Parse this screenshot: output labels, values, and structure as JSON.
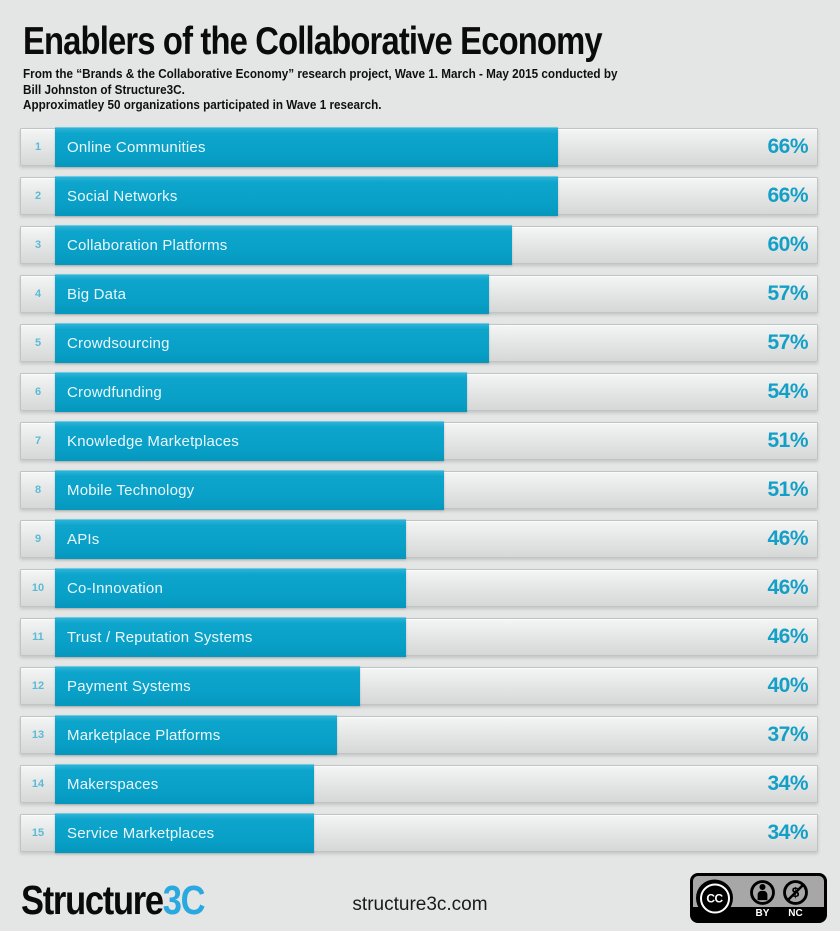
{
  "header": {
    "title": "Enablers of the Collaborative Economy",
    "subtitle_line1": "From the “Brands & the Collaborative Economy” research project, Wave 1. March - May 2015 conducted by",
    "subtitle_line2": "Bill Johnston of Structure3C.",
    "subtitle_line3": "Approximatley 50 organizations participated in Wave 1 research."
  },
  "chart_data": {
    "type": "bar",
    "orientation": "horizontal",
    "title": "Enablers of the Collaborative Economy",
    "categories": [
      "Online Communities",
      "Social Networks",
      "Collaboration Platforms",
      "Big Data",
      "Crowdsourcing",
      "Crowdfunding",
      "Knowledge Marketplaces",
      "Mobile Technology",
      "APIs",
      "Co-Innovation",
      "Trust / Reputation Systems",
      "Payment Systems",
      "Marketplace Platforms",
      "Makerspaces",
      "Service Marketplaces"
    ],
    "values": [
      66,
      66,
      60,
      57,
      57,
      54,
      51,
      51,
      46,
      46,
      46,
      40,
      37,
      34,
      34
    ],
    "ranks": [
      1,
      2,
      3,
      4,
      5,
      6,
      7,
      8,
      9,
      10,
      11,
      12,
      13,
      14,
      15
    ],
    "value_suffix": "%",
    "xlim": [
      0,
      100
    ],
    "grid": false,
    "legend": false,
    "bar_color": "#09a0c7",
    "value_label_color": "#149fc7",
    "bar_label_color": "#eaf7fb",
    "rank_color": "#5bbbd5"
  },
  "footer": {
    "logo_part1": "Structure",
    "logo_part2": "3C",
    "logo_accent_color": "#2aa9e0",
    "website": "structure3c.com",
    "license": {
      "cc_label": "CC",
      "by_label": "BY",
      "nc_label": "NC"
    }
  },
  "colors": {
    "page_background": "#e4e6e6",
    "track_border": "#c0c4c4",
    "track_gradient_top": "#f4f5f5",
    "track_gradient_bottom": "#d6d8d8",
    "title_color": "#0b0b0b"
  }
}
